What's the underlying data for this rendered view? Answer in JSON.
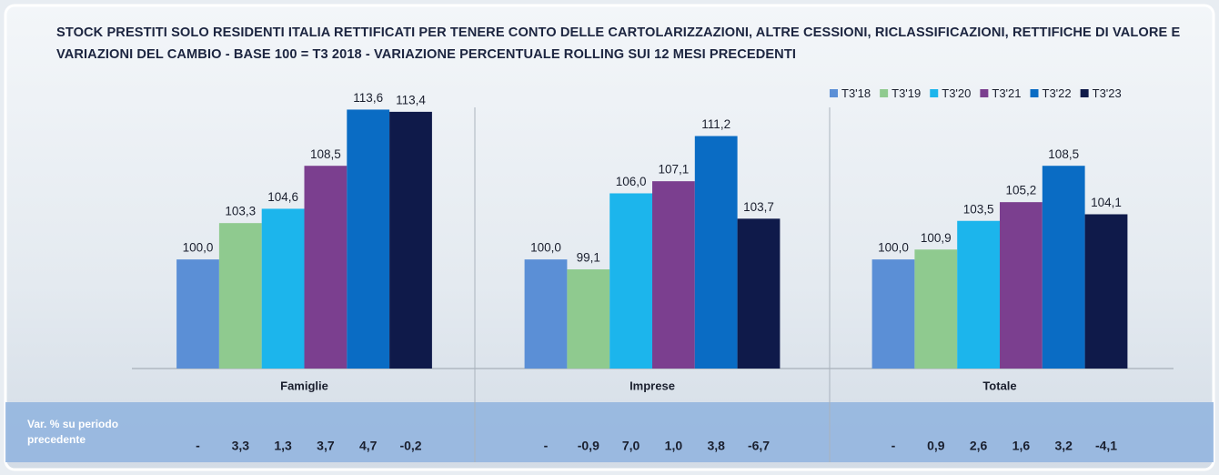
{
  "chart_data": {
    "type": "bar",
    "title": "STOCK PRESTITI SOLO RESIDENTI ITALIA RETTIFICATI PER TENERE CONTO DELLE CARTOLARIZZAZIONI, ALTRE CESSIONI, RICLASSIFICAZIONI, RETTIFICHE DI VALORE E VARIAZIONI DEL CAMBIO - BASE 100 = T3 2018 - VARIAZIONE PERCENTUALE ROLLING SUI 12 MESI PRECEDENTI",
    "categories": [
      "Famiglie",
      "Imprese",
      "Totale"
    ],
    "series": [
      {
        "name": "T3'18",
        "color": "#5b8fd6",
        "values": [
          100.0,
          100.0,
          100.0
        ],
        "value_labels": [
          "100,0",
          "100,0",
          "100,0"
        ]
      },
      {
        "name": "T3'19",
        "color": "#8fca8f",
        "values": [
          103.3,
          99.1,
          100.9
        ],
        "value_labels": [
          "103,3",
          "99,1",
          "100,9"
        ]
      },
      {
        "name": "T3'20",
        "color": "#1cb5ec",
        "values": [
          104.6,
          106.0,
          103.5
        ],
        "value_labels": [
          "104,6",
          "106,0",
          "103,5"
        ]
      },
      {
        "name": "T3'21",
        "color": "#7b3f8f",
        "values": [
          108.5,
          107.1,
          105.2
        ],
        "value_labels": [
          "108,5",
          "107,1",
          "105,2"
        ]
      },
      {
        "name": "T3'22",
        "color": "#0a6cc4",
        "values": [
          113.6,
          111.2,
          108.5
        ],
        "value_labels": [
          "113,6",
          "111,2",
          "108,5"
        ]
      },
      {
        "name": "T3'23",
        "color": "#0f1a4a",
        "values": [
          113.4,
          103.7,
          104.1
        ],
        "value_labels": [
          "113,4",
          "103,7",
          "104,1"
        ]
      }
    ],
    "ylim": [
      90.1,
      115
    ],
    "legend": "top-right",
    "change_label": "Var. % su periodo precedente",
    "changes": [
      [
        "-",
        "3,3",
        "1,3",
        "3,7",
        "4,7",
        "-0,2"
      ],
      [
        "-",
        "-0,9",
        "7,0",
        "1,0",
        "3,8",
        "-6,7"
      ],
      [
        "-",
        "0,9",
        "2,6",
        "1,6",
        "3,2",
        "-4,1"
      ]
    ]
  }
}
